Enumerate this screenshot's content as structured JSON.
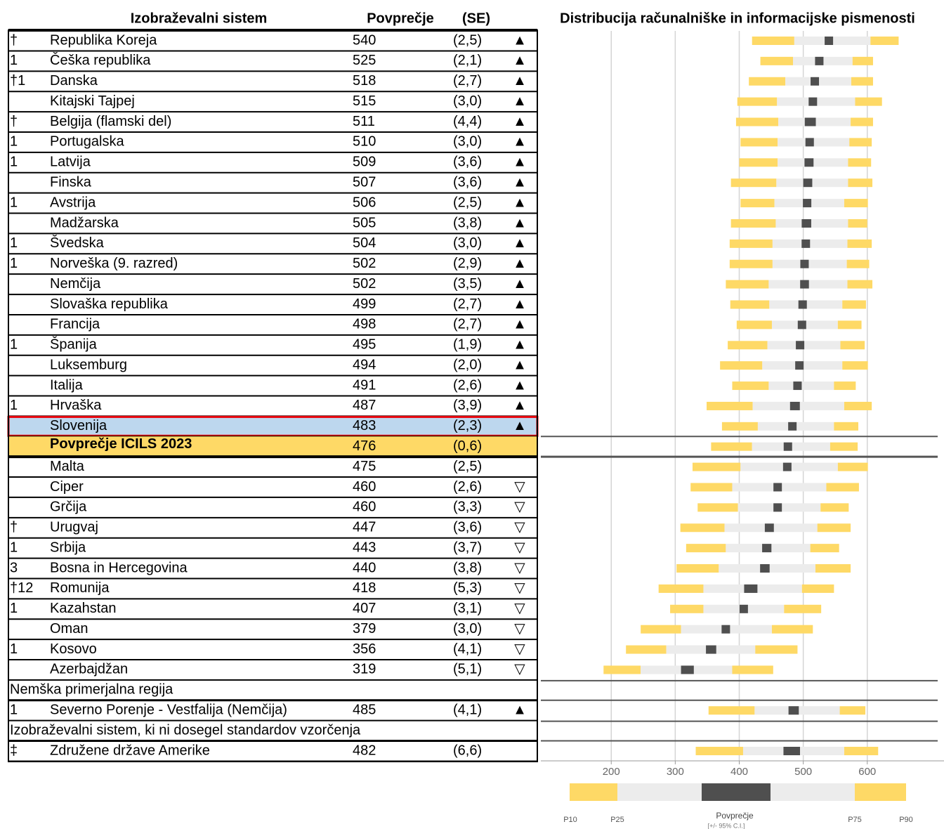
{
  "header": {
    "system": "Izobraževalni sistem",
    "mean": "Povprečje",
    "se": "(SE)",
    "chart_title": "Distribucija računalniške in informacijske pismenosti"
  },
  "table": {
    "rows": [
      {
        "note": "†",
        "country": "Republika Koreja",
        "mean": 540,
        "se": 2.5,
        "se_label": "(2,5)",
        "trend": "▲",
        "p10": 420,
        "p25": 486,
        "p75": 605,
        "p90": 649
      },
      {
        "note": "1",
        "country": "Češka republika",
        "mean": 525,
        "se": 2.1,
        "se_label": "(2,1)",
        "trend": "▲",
        "p10": 433,
        "p25": 484,
        "p75": 577,
        "p90": 609
      },
      {
        "note": "†1",
        "country": "Danska",
        "mean": 518,
        "se": 2.7,
        "se_label": "(2,7)",
        "trend": "▲",
        "p10": 415,
        "p25": 472,
        "p75": 575,
        "p90": 609
      },
      {
        "country": "Kitajski Tajpej",
        "mean": 515,
        "se": 3.0,
        "se_label": "(3,0)",
        "trend": "▲",
        "p10": 397,
        "p25": 459,
        "p75": 581,
        "p90": 623
      },
      {
        "note": "†",
        "country": "Belgija (flamski del)",
        "mean": 511,
        "se": 4.4,
        "se_label": "(4,4)",
        "trend": "▲",
        "p10": 395,
        "p25": 461,
        "p75": 574,
        "p90": 609
      },
      {
        "note": "1",
        "country": "Portugalska",
        "mean": 510,
        "se": 3.0,
        "se_label": "(3,0)",
        "trend": "▲",
        "p10": 402,
        "p25": 460,
        "p75": 572,
        "p90": 607
      },
      {
        "note": "1",
        "country": "Latvija",
        "mean": 509,
        "se": 3.6,
        "se_label": "(3,6)",
        "trend": "▲",
        "p10": 400,
        "p25": 460,
        "p75": 570,
        "p90": 606
      },
      {
        "country": "Finska",
        "mean": 507,
        "se": 3.6,
        "se_label": "(3,6)",
        "trend": "▲",
        "p10": 387,
        "p25": 458,
        "p75": 570,
        "p90": 608
      },
      {
        "note": "1",
        "country": "Avstrija",
        "mean": 506,
        "se": 2.5,
        "se_label": "(2,5)",
        "trend": "▲",
        "p10": 402,
        "p25": 455,
        "p75": 564,
        "p90": 601
      },
      {
        "country": "Madžarska",
        "mean": 505,
        "se": 3.8,
        "se_label": "(3,8)",
        "trend": "▲",
        "p10": 387,
        "p25": 457,
        "p75": 570,
        "p90": 600
      },
      {
        "note": "1",
        "country": "Švedska",
        "mean": 504,
        "se": 3.0,
        "se_label": "(3,0)",
        "trend": "▲",
        "p10": 385,
        "p25": 452,
        "p75": 569,
        "p90": 607
      },
      {
        "note": "1",
        "country": "Norveška (9. razred)",
        "mean": 502,
        "se": 2.9,
        "se_label": "(2,9)",
        "trend": "▲",
        "p10": 385,
        "p25": 452,
        "p75": 568,
        "p90": 603
      },
      {
        "country": "Nemčija",
        "mean": 502,
        "se": 3.5,
        "se_label": "(3,5)",
        "trend": "▲",
        "p10": 379,
        "p25": 446,
        "p75": 569,
        "p90": 608
      },
      {
        "country": "Slovaška republika",
        "mean": 499,
        "se": 2.7,
        "se_label": "(2,7)",
        "trend": "▲",
        "p10": 386,
        "p25": 447,
        "p75": 561,
        "p90": 598
      },
      {
        "country": "Francija",
        "mean": 498,
        "se": 2.7,
        "se_label": "(2,7)",
        "trend": "▲",
        "p10": 396,
        "p25": 451,
        "p75": 554,
        "p90": 591
      },
      {
        "note": "1",
        "country": "Španija",
        "mean": 495,
        "se": 1.9,
        "se_label": "(1,9)",
        "trend": "▲",
        "p10": 382,
        "p25": 444,
        "p75": 558,
        "p90": 596
      },
      {
        "country": "Luksemburg",
        "mean": 494,
        "se": 2.0,
        "se_label": "(2,0)",
        "trend": "▲",
        "p10": 370,
        "p25": 436,
        "p75": 561,
        "p90": 601
      },
      {
        "country": "Italija",
        "mean": 491,
        "se": 2.6,
        "se_label": "(2,6)",
        "trend": "▲",
        "p10": 389,
        "p25": 446,
        "p75": 548,
        "p90": 582
      },
      {
        "note": "1",
        "country": "Hrvaška",
        "mean": 487,
        "se": 3.9,
        "se_label": "(3,9)",
        "trend": "▲",
        "p10": 349,
        "p25": 421,
        "p75": 564,
        "p90": 607
      },
      {
        "country": "Slovenija",
        "mean": 483,
        "se": 2.3,
        "se_label": "(2,3)",
        "trend": "▲",
        "p10": 373,
        "p25": 429,
        "p75": 548,
        "p90": 586,
        "highlight": "selected"
      },
      {
        "country": "Povprečje ICILS 2023",
        "mean": 476,
        "se": 0.6,
        "se_label": "(0,6)",
        "p10": 356,
        "p25": 420,
        "p75": 542,
        "p90": 585,
        "highlight": "average"
      },
      {
        "country": "Malta",
        "mean": 475,
        "se": 2.5,
        "se_label": "(2,5)",
        "p10": 327,
        "p25": 402,
        "p75": 554,
        "p90": 601
      },
      {
        "country": "Ciper",
        "mean": 460,
        "se": 2.6,
        "se_label": "(2,6)",
        "trend": "▽",
        "p10": 324,
        "p25": 389,
        "p75": 536,
        "p90": 587
      },
      {
        "country": "Grčija",
        "mean": 460,
        "se": 3.3,
        "se_label": "(3,3)",
        "trend": "▽",
        "p10": 335,
        "p25": 398,
        "p75": 527,
        "p90": 571
      },
      {
        "note": "†",
        "country": "Urugvaj",
        "mean": 447,
        "se": 3.6,
        "se_label": "(3,6)",
        "trend": "▽",
        "p10": 308,
        "p25": 377,
        "p75": 522,
        "p90": 574
      },
      {
        "note": "1",
        "country": "Srbija",
        "mean": 443,
        "se": 3.7,
        "se_label": "(3,7)",
        "trend": "▽",
        "p10": 317,
        "p25": 379,
        "p75": 511,
        "p90": 556
      },
      {
        "note": "3",
        "country": "Bosna in Hercegovina",
        "mean": 440,
        "se": 3.8,
        "se_label": "(3,8)",
        "trend": "▽",
        "p10": 302,
        "p25": 368,
        "p75": 519,
        "p90": 574
      },
      {
        "note": "†12",
        "country": "Romunija",
        "mean": 418,
        "se": 5.3,
        "se_label": "(5,3)",
        "trend": "▽",
        "p10": 274,
        "p25": 344,
        "p75": 498,
        "p90": 548
      },
      {
        "note": "1",
        "country": "Kazahstan",
        "mean": 407,
        "se": 3.1,
        "se_label": "(3,1)",
        "trend": "▽",
        "p10": 292,
        "p25": 344,
        "p75": 470,
        "p90": 528
      },
      {
        "country": "Oman",
        "mean": 379,
        "se": 3.0,
        "se_label": "(3,0)",
        "trend": "▽",
        "p10": 246,
        "p25": 309,
        "p75": 451,
        "p90": 515
      },
      {
        "note": "1",
        "country": "Kosovo",
        "mean": 356,
        "se": 4.1,
        "se_label": "(4,1)",
        "trend": "▽",
        "p10": 223,
        "p25": 286,
        "p75": 425,
        "p90": 491
      },
      {
        "country": "Azerbajdžan",
        "mean": 319,
        "se": 5.1,
        "se_label": "(5,1)",
        "trend": "▽",
        "p10": 188,
        "p25": 246,
        "p75": 389,
        "p90": 453
      }
    ],
    "sections": [
      {
        "title": "Nemška primerjalna regija",
        "rows": [
          {
            "note": "1",
            "country": "Severno Porenje - Vestfalija (Nemčija)",
            "mean": 485,
            "se": 4.1,
            "se_label": "(4,1)",
            "trend": "▲",
            "p10": 352,
            "p25": 424,
            "p75": 557,
            "p90": 597
          }
        ]
      },
      {
        "title": "Izobraževalni sistem, ki ni dosegel standardov vzorčenja",
        "rows": [
          {
            "note": "‡",
            "country": "Združene države Amerike",
            "mean": 482,
            "se": 6.6,
            "se_label": "(6,6)",
            "p10": 332,
            "p25": 406,
            "p75": 564,
            "p90": 617
          }
        ]
      }
    ]
  },
  "chart_data": {
    "type": "range",
    "xlim": [
      90,
      710
    ],
    "xticks": [
      200,
      300,
      400,
      500,
      600
    ],
    "grid": true,
    "colors": {
      "outer": "#fed966",
      "inner": "#ececec",
      "mean": "#4f4f4f"
    },
    "legend": {
      "p10": "P10",
      "p25": "P25",
      "mean": "Povprečje",
      "ci": "[+/- 95% C.I.]",
      "p75": "P75",
      "p90": "P90"
    }
  }
}
